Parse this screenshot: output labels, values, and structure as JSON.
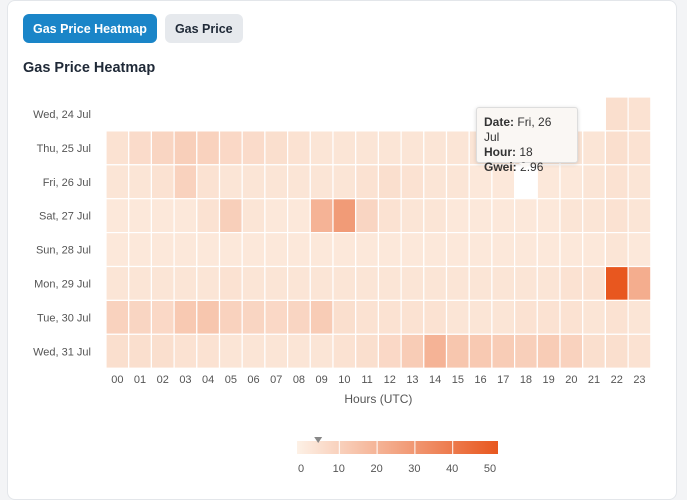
{
  "tabs": [
    {
      "label": "Gas Price Heatmap",
      "active": true
    },
    {
      "label": "Gas Price",
      "active": false
    }
  ],
  "chart_title": "Gas Price Heatmap",
  "tooltip": {
    "date_label": "Date:",
    "date_value": "Fri, 26 Jul",
    "hour_label": "Hour:",
    "hour_value": "18",
    "gwei_label": "Gwei:",
    "gwei_value": "2.96"
  },
  "colors": {
    "low": "#fdf1e6",
    "high": "#e8571f"
  },
  "chart_data": {
    "type": "heatmap",
    "title": "Gas Price Heatmap",
    "xlabel": "Hours (UTC)",
    "ylabel": "",
    "x": [
      "00",
      "01",
      "02",
      "03",
      "04",
      "05",
      "06",
      "07",
      "08",
      "09",
      "10",
      "11",
      "12",
      "13",
      "14",
      "15",
      "16",
      "17",
      "18",
      "19",
      "20",
      "21",
      "22",
      "23"
    ],
    "y": [
      "Wed, 24 Jul",
      "Thu, 25 Jul",
      "Fri, 26 Jul",
      "Sat, 27 Jul",
      "Sun, 28 Jul",
      "Mon, 29 Jul",
      "Tue, 30 Jul",
      "Wed, 31 Jul"
    ],
    "values": [
      [
        null,
        null,
        null,
        null,
        null,
        null,
        null,
        null,
        null,
        null,
        null,
        null,
        null,
        null,
        null,
        null,
        null,
        null,
        null,
        null,
        null,
        null,
        6,
        5
      ],
      [
        5,
        7,
        9,
        11,
        10,
        8,
        7,
        6,
        5,
        4,
        4,
        4,
        4,
        4,
        4,
        4,
        4,
        4,
        4,
        4,
        4,
        4,
        6,
        5
      ],
      [
        4,
        4,
        5,
        10,
        5,
        4,
        4,
        4,
        4,
        4,
        4,
        5,
        6,
        5,
        4,
        4,
        3,
        3,
        2.96,
        3,
        3,
        4,
        5,
        4
      ],
      [
        3,
        3,
        3,
        3,
        5,
        11,
        4,
        3,
        3,
        20,
        28,
        9,
        5,
        4,
        4,
        3,
        3,
        3,
        3,
        3,
        4,
        4,
        5,
        4
      ],
      [
        3,
        3,
        3,
        3,
        3,
        3,
        3,
        3,
        3,
        3,
        3,
        3,
        3,
        3,
        3,
        3,
        3,
        3,
        3,
        3,
        3,
        3,
        4,
        3
      ],
      [
        4,
        4,
        4,
        4,
        4,
        5,
        4,
        4,
        4,
        4,
        4,
        4,
        4,
        4,
        4,
        4,
        4,
        4,
        4,
        4,
        5,
        5,
        50,
        22
      ],
      [
        10,
        9,
        8,
        13,
        14,
        10,
        9,
        8,
        9,
        12,
        6,
        5,
        5,
        5,
        5,
        4,
        4,
        4,
        5,
        5,
        5,
        4,
        5,
        4
      ],
      [
        6,
        6,
        6,
        5,
        5,
        4,
        4,
        4,
        4,
        4,
        5,
        6,
        8,
        12,
        20,
        14,
        13,
        12,
        11,
        12,
        10,
        6,
        6,
        5
      ]
    ],
    "scale": {
      "min": 0,
      "max": 50,
      "ticks": [
        0,
        10,
        20,
        30,
        40,
        50
      ],
      "indicator": 2.96
    }
  }
}
